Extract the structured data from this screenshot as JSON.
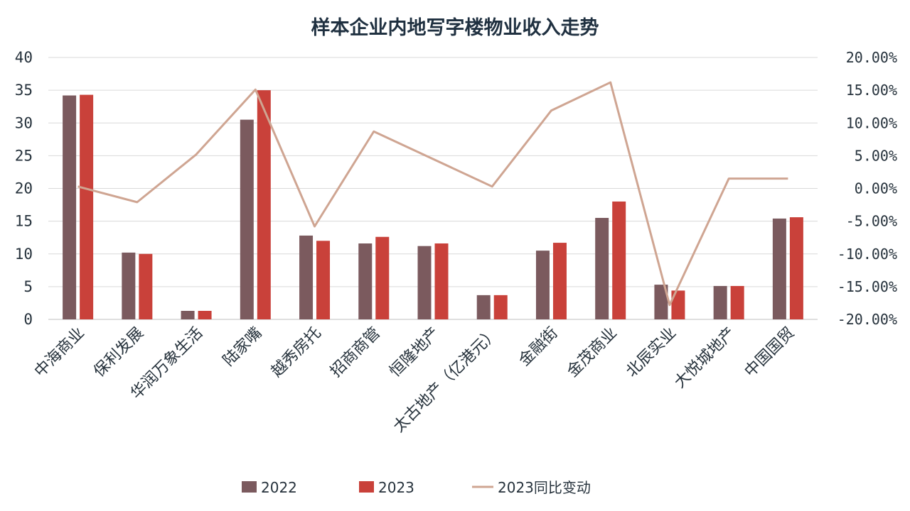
{
  "chart_data": {
    "type": "bar",
    "title": "样本企业内地写字楼物业收入走势",
    "categories": [
      "中海商业",
      "保利发展",
      "华润万象生活",
      "陆家嘴",
      "越秀房托",
      "招商商管",
      "恒隆地产",
      "太古地产（亿港元）",
      "金融街",
      "金茂商业",
      "北辰实业",
      "大悦城地产",
      "中国国贸"
    ],
    "series": [
      {
        "name": "2022",
        "type": "bar",
        "axis": "left",
        "color": "#7b5a5e",
        "values": [
          34.2,
          10.2,
          1.3,
          30.5,
          12.8,
          11.6,
          11.2,
          3.7,
          10.5,
          15.5,
          5.3,
          5.1,
          15.4
        ]
      },
      {
        "name": "2023",
        "type": "bar",
        "axis": "left",
        "color": "#c9413a",
        "values": [
          34.3,
          10.0,
          1.3,
          35.0,
          12.0,
          12.6,
          11.6,
          3.7,
          11.7,
          18.0,
          4.4,
          5.1,
          15.6
        ]
      },
      {
        "name": "2023同比变动",
        "type": "line",
        "axis": "right",
        "color": "#cfa592",
        "values": [
          0.29,
          -2.1,
          5.2,
          15.1,
          -5.8,
          8.7,
          4.5,
          0.29,
          11.9,
          16.2,
          -17.8,
          1.5,
          1.5
        ]
      }
    ],
    "left_axis": {
      "ylim": [
        0,
        40
      ],
      "ticks": [
        "0",
        "5",
        "10",
        "15",
        "20",
        "25",
        "30",
        "35",
        "40"
      ]
    },
    "right_axis": {
      "ylim": [
        -20,
        20
      ],
      "ticks": [
        "-20.00%",
        "-15.00%",
        "-10.00%",
        "-5.00%",
        "0.00%",
        "5.00%",
        "10.00%",
        "15.00%",
        "20.00%"
      ]
    },
    "grid": true,
    "legend_position": "bottom"
  }
}
